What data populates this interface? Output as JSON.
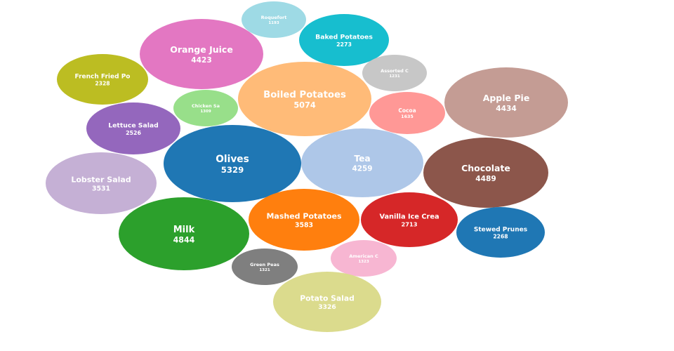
{
  "chart_data": {
    "type": "bubble",
    "title": "",
    "items": [
      {
        "label": "Roquefort",
        "value": 1193,
        "color": "#9edae5"
      },
      {
        "label": "Baked Potatoes",
        "value": 2273,
        "color": "#17becf"
      },
      {
        "label": "Orange Juice",
        "value": 4423,
        "color": "#e377c2"
      },
      {
        "label": "Assorted C",
        "value": 1231,
        "color": "#c7c7c7"
      },
      {
        "label": "French Fried Po",
        "value": 2328,
        "color": "#bcbd22"
      },
      {
        "label": "Boiled Potatoes",
        "value": 5074,
        "color": "#ffbb78"
      },
      {
        "label": "Apple Pie",
        "value": 4434,
        "color": "#c49c94"
      },
      {
        "label": "Chicken Sa",
        "value": 1309,
        "color": "#98df8a"
      },
      {
        "label": "Cocoa",
        "value": 1635,
        "color": "#ff9896"
      },
      {
        "label": "Lettuce Salad",
        "value": 2526,
        "color": "#9467bd"
      },
      {
        "label": "Olives",
        "value": 5329,
        "color": "#1f77b4"
      },
      {
        "label": "Tea",
        "value": 4259,
        "color": "#aec7e8"
      },
      {
        "label": "Chocolate",
        "value": 4489,
        "color": "#8c564b"
      },
      {
        "label": "Lobster Salad",
        "value": 3531,
        "color": "#c5b0d5"
      },
      {
        "label": "Milk",
        "value": 4844,
        "color": "#2ca02c"
      },
      {
        "label": "Mashed Potatoes",
        "value": 3583,
        "color": "#ff7f0e"
      },
      {
        "label": "Vanilla Ice Crea",
        "value": 2713,
        "color": "#d62728"
      },
      {
        "label": "Stewed Prunes",
        "value": 2268,
        "color": "#1f77b4"
      },
      {
        "label": "American C",
        "value": 1323,
        "color": "#f7b6d2"
      },
      {
        "label": "Green Peas",
        "value": 1321,
        "color": "#7f7f7f"
      },
      {
        "label": "Potato Salad",
        "value": 3326,
        "color": "#dbdb8d"
      }
    ]
  }
}
